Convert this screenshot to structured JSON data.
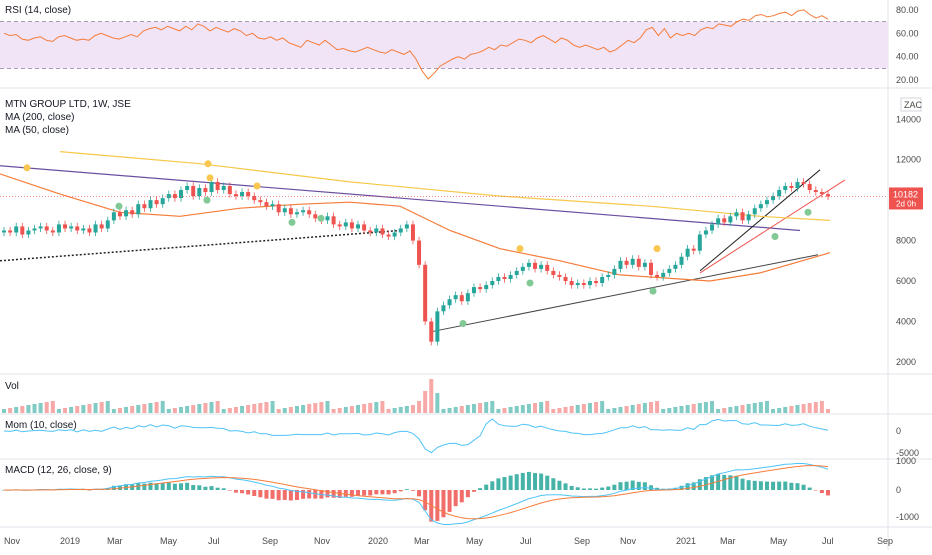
{
  "chart_data": [
    {
      "type": "line",
      "panel": "rsi",
      "title": "RSI (14, close)",
      "ylim": [
        15,
        85
      ],
      "y_ticks": [
        "80.00",
        "60.00",
        "40.00",
        "20.00"
      ],
      "band": [
        30,
        70
      ],
      "line_color": "#f57c3a",
      "band_color": "#f1e4f7",
      "values": [
        60,
        58,
        59,
        55,
        54,
        56,
        57,
        54,
        53,
        57,
        58,
        56,
        54,
        55,
        54,
        58,
        60,
        58,
        56,
        55,
        57,
        59,
        57,
        62,
        64,
        65,
        63,
        66,
        64,
        62,
        66,
        63,
        68,
        66,
        62,
        65,
        63,
        61,
        64,
        62,
        58,
        60,
        56,
        55,
        57,
        54,
        56,
        52,
        50,
        48,
        54,
        52,
        50,
        54,
        50,
        46,
        47,
        45,
        44,
        46,
        48,
        46,
        44,
        43,
        46,
        44,
        42,
        45,
        38,
        28,
        21,
        26,
        32,
        35,
        38,
        40,
        38,
        42,
        43,
        45,
        48,
        46,
        50,
        49,
        52,
        55,
        54,
        52,
        56,
        58,
        55,
        52,
        56,
        54,
        50,
        48,
        50,
        48,
        46,
        48,
        44,
        46,
        50,
        54,
        52,
        56,
        63,
        65,
        58,
        64,
        56,
        60,
        58,
        60,
        58,
        63,
        65,
        64,
        68,
        67,
        66,
        70,
        72,
        71,
        75,
        76,
        74,
        75,
        77,
        78,
        75,
        79,
        80,
        76,
        73,
        75,
        72
      ]
    },
    {
      "type": "candlestick",
      "panel": "price",
      "title": "MTN GROUP LTD, 1W, JSE",
      "legend": [
        "MA (200, close)",
        "MA (50, close)"
      ],
      "ylim": [
        1500,
        15200
      ],
      "y_ticks": [
        "14000",
        "12000",
        "10000",
        "8000",
        "6000",
        "4000",
        "2000"
      ],
      "currency": "ZAC",
      "last_price": "10182",
      "last_price_sub": "2d 0h",
      "x_labels": [
        "Nov",
        "2019",
        "Mar",
        "May",
        "Jul",
        "Sep",
        "Nov",
        "2020",
        "Mar",
        "May",
        "Jul",
        "Sep",
        "Nov",
        "2021",
        "Mar",
        "May",
        "Jul",
        "Sep"
      ],
      "closes": [
        8500,
        8400,
        8700,
        8300,
        8500,
        8600,
        8700,
        8500,
        8400,
        8800,
        8600,
        8700,
        8500,
        8600,
        8400,
        8800,
        8600,
        9000,
        9400,
        9200,
        9500,
        9300,
        9800,
        9600,
        10000,
        9800,
        10100,
        10300,
        10100,
        10500,
        10700,
        10200,
        10600,
        10400,
        10900,
        10500,
        10700,
        10300,
        10200,
        10400,
        10200,
        10000,
        9900,
        9700,
        9800,
        9400,
        9600,
        9300,
        9400,
        9500,
        9300,
        9100,
        9000,
        9200,
        8800,
        8700,
        8900,
        8600,
        8800,
        8500,
        8400,
        8600,
        8300,
        8200,
        8400,
        8600,
        8800,
        8000,
        6800,
        4000,
        3000,
        4500,
        4800,
        5100,
        5300,
        5000,
        5400,
        5700,
        5600,
        5800,
        6000,
        6200,
        6100,
        6300,
        6500,
        6700,
        6900,
        6600,
        6800,
        6500,
        6300,
        6200,
        6000,
        5800,
        5900,
        5800,
        6000,
        5900,
        6200,
        6300,
        6600,
        7000,
        6800,
        7100,
        6700,
        6900,
        6300,
        6200,
        6400,
        6600,
        6800,
        7200,
        7600,
        7500,
        8300,
        8500,
        8800,
        9100,
        8900,
        9200,
        9400,
        9000,
        9300,
        9600,
        9800,
        10000,
        10200,
        10500,
        10700,
        10600,
        10900,
        10800,
        10500,
        10400,
        10300,
        10182
      ],
      "ma50_color": "#f57c3a",
      "ma200_color": "#f7c84a",
      "up_color": "#26a69a",
      "down_color": "#ef5350"
    },
    {
      "type": "bar",
      "panel": "volume",
      "title": "Vol"
    },
    {
      "type": "line",
      "panel": "momentum",
      "title": "Mom (10, close)",
      "y_ticks": [
        "0",
        "-5000"
      ],
      "line_color": "#4fc3f7"
    },
    {
      "type": "bar",
      "panel": "macd",
      "title": "MACD (12, 26, close, 9)",
      "y_ticks": [
        "1000",
        "0",
        "-1000"
      ],
      "macd_color": "#4fc3f7",
      "signal_color": "#f57c3a"
    }
  ]
}
